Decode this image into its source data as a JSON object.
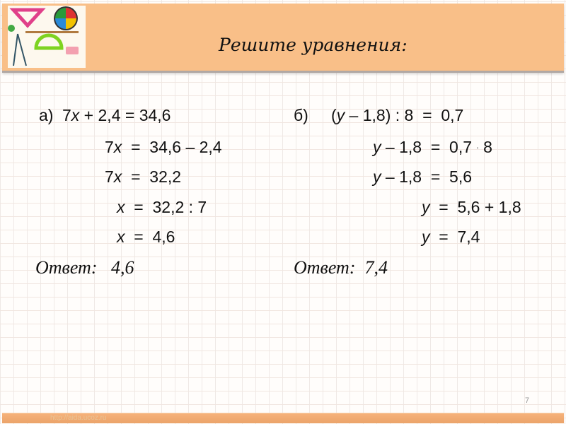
{
  "title": "Решите уравнения:",
  "colors": {
    "header": "#f9bf88",
    "footer": "#eba46a"
  },
  "logo_icon": "geometry-tools-icon",
  "part_a": {
    "label": "а)",
    "lines": [
      [
        {
          "t": "7"
        },
        {
          "t": "x",
          "i": true
        },
        {
          "t": " + 2,4 = 34,6"
        }
      ],
      [
        {
          "t": "7"
        },
        {
          "t": "x",
          "i": true
        },
        {
          "t": "  =  34,6 – 2,4"
        }
      ],
      [
        {
          "t": "7"
        },
        {
          "t": "x",
          "i": true
        },
        {
          "t": "  =  32,2"
        }
      ],
      [
        {
          "t": "x",
          "i": true
        },
        {
          "t": "  =  32,2 : 7"
        }
      ],
      [
        {
          "t": "x",
          "i": true
        },
        {
          "t": "  =  4,6"
        }
      ]
    ],
    "answer": "Ответ:   4,6"
  },
  "part_b": {
    "label": "б)",
    "lines": [
      [
        {
          "t": "("
        },
        {
          "t": "y",
          "i": true
        },
        {
          "t": " – 1,8) : 8  =  0,7"
        }
      ],
      [
        {
          "t": "y",
          "i": true
        },
        {
          "t": " – 1,8  =  0,7 "
        },
        {
          "t": ".",
          "d": true
        },
        {
          "t": " 8"
        }
      ],
      [
        {
          "t": "y",
          "i": true
        },
        {
          "t": " – 1,8  =  5,6"
        }
      ],
      [
        {
          "t": "y",
          "i": true
        },
        {
          "t": "  =  5,6 + 1,8"
        }
      ],
      [
        {
          "t": "y",
          "i": true
        },
        {
          "t": "  =  7,4"
        }
      ]
    ],
    "answer": "Ответ:  7,4"
  },
  "page_number": "7",
  "footer_url": "http://aida.ucoz.ru"
}
